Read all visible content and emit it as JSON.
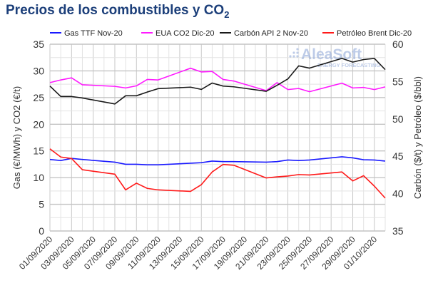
{
  "title": "Precios de los combustibles y CO",
  "title_sub": "2",
  "watermark": {
    "brand": "AleaSoft",
    "tagline": "ENERGY FORECASTING"
  },
  "chart_data": {
    "type": "line",
    "title": "Precios de los combustibles y CO2",
    "ylabel_left": "Gas (€/MWh) y CO2 (€/t)",
    "ylabel_right": "Carbón ($/t) y Petróleo ($/bbl)",
    "ylim_left": [
      0,
      35
    ],
    "ylim_right": [
      35,
      60
    ],
    "yticks_left": [
      "0",
      "5",
      "10",
      "15",
      "20",
      "25",
      "30",
      "35"
    ],
    "yticks_right": [
      "35",
      "40",
      "45",
      "50",
      "55",
      "60"
    ],
    "grid": true,
    "legend_position": "top",
    "x_tick_labels": [
      "01/09/2020",
      "03/09/2020",
      "05/09/2020",
      "07/09/2020",
      "09/09/2020",
      "11/09/2020",
      "13/09/2020",
      "15/09/2020",
      "17/09/2020",
      "19/09/2020",
      "21/09/2020",
      "23/09/2020",
      "25/09/2020",
      "27/09/2020",
      "29/09/2020",
      "01/10/2020"
    ],
    "x": [
      "01/09/2020",
      "02/09/2020",
      "03/09/2020",
      "04/09/2020",
      "07/09/2020",
      "08/09/2020",
      "09/09/2020",
      "10/09/2020",
      "11/09/2020",
      "14/09/2020",
      "15/09/2020",
      "16/09/2020",
      "17/09/2020",
      "18/09/2020",
      "21/09/2020",
      "22/09/2020",
      "23/09/2020",
      "24/09/2020",
      "25/09/2020",
      "28/09/2020",
      "29/09/2020",
      "30/09/2020",
      "01/10/2020",
      "02/10/2020"
    ],
    "x_day_index": [
      0,
      1,
      2,
      3,
      6,
      7,
      8,
      9,
      10,
      13,
      14,
      15,
      16,
      17,
      20,
      21,
      22,
      23,
      24,
      27,
      28,
      29,
      30,
      31
    ],
    "series": [
      {
        "name": "Gas TTF Nov-20",
        "axis": "left",
        "color": "#1a1aff",
        "values": [
          13.4,
          13.2,
          13.6,
          13.4,
          12.9,
          12.5,
          12.5,
          12.4,
          12.4,
          12.7,
          12.8,
          13.1,
          13.0,
          13.0,
          12.9,
          13.0,
          13.3,
          13.2,
          13.3,
          13.9,
          13.7,
          13.35,
          13.3,
          13.1
        ]
      },
      {
        "name": "EUA CO2 Dic-20",
        "axis": "left",
        "color": "#ff1aff",
        "values": [
          27.8,
          28.3,
          28.7,
          27.4,
          27.1,
          26.8,
          27.2,
          28.4,
          28.3,
          30.5,
          29.8,
          29.9,
          28.4,
          28.1,
          26.3,
          27.8,
          26.5,
          26.7,
          26.1,
          27.7,
          26.8,
          26.9,
          26.5,
          27.0
        ]
      },
      {
        "name": "Carbón API 2 Nov-20",
        "axis": "right",
        "color": "#1a1a1a",
        "values": [
          54.4,
          53.0,
          53.0,
          52.8,
          52.0,
          53.1,
          53.1,
          53.6,
          54.05,
          54.25,
          53.95,
          54.8,
          54.4,
          54.3,
          53.7,
          54.5,
          55.35,
          57.1,
          56.8,
          58.1,
          57.6,
          57.95,
          58.1,
          56.6
        ]
      },
      {
        "name": "Petróleo Brent Dic-20",
        "axis": "right",
        "color": "#ff1a1a",
        "values": [
          46.0,
          44.9,
          44.7,
          43.2,
          42.6,
          40.5,
          41.4,
          40.7,
          40.5,
          40.3,
          41.2,
          42.9,
          43.9,
          43.8,
          42.1,
          42.25,
          42.35,
          42.55,
          42.5,
          42.9,
          41.7,
          42.4,
          41.0,
          39.4
        ]
      }
    ]
  }
}
